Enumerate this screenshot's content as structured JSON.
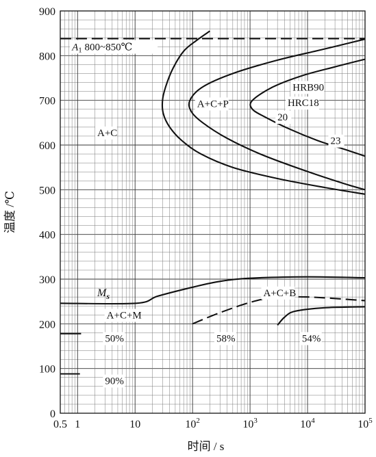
{
  "chart_data": {
    "type": "line",
    "title": "",
    "xlabel": "时间 / s",
    "ylabel": "温度 /℃",
    "x_scale": "log",
    "xlim": [
      0.5,
      100000
    ],
    "ylim": [
      0,
      900
    ],
    "x_ticks": [
      {
        "value": 0.5,
        "label": "0.5"
      },
      {
        "value": 1,
        "label": "1"
      },
      {
        "value": 10,
        "label": "10"
      },
      {
        "value": 100,
        "label": "10",
        "exp": "2"
      },
      {
        "value": 1000,
        "label": "10",
        "exp": "3"
      },
      {
        "value": 10000,
        "label": "10",
        "exp": "4"
      },
      {
        "value": 100000,
        "label": "10",
        "exp": "5"
      }
    ],
    "y_ticks": [
      0,
      100,
      200,
      300,
      400,
      500,
      600,
      700,
      800,
      900
    ],
    "grid": true,
    "curves": [
      {
        "style": "dashed",
        "points": [
          [
            0.5,
            838
          ],
          [
            100000,
            838
          ]
        ]
      },
      {
        "style": "solid",
        "points": [
          [
            200,
            855
          ],
          [
            120,
            835
          ],
          [
            70,
            810
          ],
          [
            45,
            770
          ],
          [
            34,
            730
          ],
          [
            30,
            700
          ],
          [
            31,
            670
          ],
          [
            40,
            640
          ],
          [
            65,
            610
          ],
          [
            140,
            580
          ],
          [
            500,
            550
          ],
          [
            3000,
            525
          ],
          [
            20000,
            505
          ],
          [
            100000,
            490
          ]
        ]
      },
      {
        "style": "solid",
        "points": [
          [
            100000,
            837
          ],
          [
            20000,
            815
          ],
          [
            3000,
            790
          ],
          [
            500,
            760
          ],
          [
            150,
            730
          ],
          [
            90,
            700
          ],
          [
            95,
            675
          ],
          [
            150,
            650
          ],
          [
            400,
            615
          ],
          [
            1500,
            580
          ],
          [
            8000,
            545
          ],
          [
            40000,
            515
          ],
          [
            100000,
            500
          ]
        ]
      },
      {
        "style": "solid",
        "points": [
          [
            100000,
            792
          ],
          [
            30000,
            775
          ],
          [
            8000,
            755
          ],
          [
            2500,
            730
          ],
          [
            1100,
            700
          ],
          [
            1100,
            680
          ],
          [
            2000,
            660
          ],
          [
            5000,
            635
          ],
          [
            15000,
            610
          ],
          [
            50000,
            588
          ],
          [
            100000,
            575
          ]
        ]
      },
      {
        "style": "solid",
        "points": [
          [
            0.5,
            246
          ],
          [
            10.5,
            246
          ],
          [
            25,
            262
          ],
          [
            100,
            282
          ],
          [
            300,
            295
          ],
          [
            1000,
            302
          ],
          [
            10000,
            305
          ],
          [
            100000,
            303
          ]
        ]
      },
      {
        "style": "dashed",
        "points": [
          [
            100,
            200
          ],
          [
            300,
            225
          ],
          [
            1000,
            248
          ],
          [
            2500,
            258
          ],
          [
            10000,
            260
          ],
          [
            100000,
            252
          ]
        ]
      },
      {
        "style": "solid",
        "points": [
          [
            3000,
            197
          ],
          [
            4000,
            215
          ],
          [
            6000,
            228
          ],
          [
            20000,
            236
          ],
          [
            100000,
            238
          ]
        ]
      },
      {
        "style": "solid",
        "points": [
          [
            0.5,
            178
          ],
          [
            1.15,
            178
          ]
        ]
      },
      {
        "style": "solid",
        "points": [
          [
            0.5,
            88
          ],
          [
            1.1,
            88
          ]
        ]
      }
    ],
    "annotations": {
      "a1": {
        "base": "A",
        "sub": "1",
        "text": " 800~850℃",
        "x": 0.8,
        "y": 812
      },
      "ms": {
        "base": "M",
        "sub": "s",
        "x": 2.2,
        "y": 262
      },
      "regions": [
        {
          "text": "A+C",
          "x": 2.2,
          "y": 620
        },
        {
          "text": "A+C+P",
          "x": 120,
          "y": 685
        },
        {
          "text": "HRB90",
          "x": 5500,
          "y": 722
        },
        {
          "text": "HRC18",
          "x": 4500,
          "y": 687
        },
        {
          "text": "20",
          "x": 3000,
          "y": 655
        },
        {
          "text": "23",
          "x": 25000,
          "y": 602
        },
        {
          "text": "A+C+B",
          "x": 1700,
          "y": 262
        },
        {
          "text": "A+C+M",
          "x": 3.2,
          "y": 212
        }
      ],
      "percents": [
        {
          "text": "50%",
          "x": 3.0,
          "y": 160
        },
        {
          "text": "58%",
          "x": 260,
          "y": 160
        },
        {
          "text": "54%",
          "x": 8000,
          "y": 160
        },
        {
          "text": "90%",
          "x": 3.0,
          "y": 65
        }
      ]
    }
  }
}
